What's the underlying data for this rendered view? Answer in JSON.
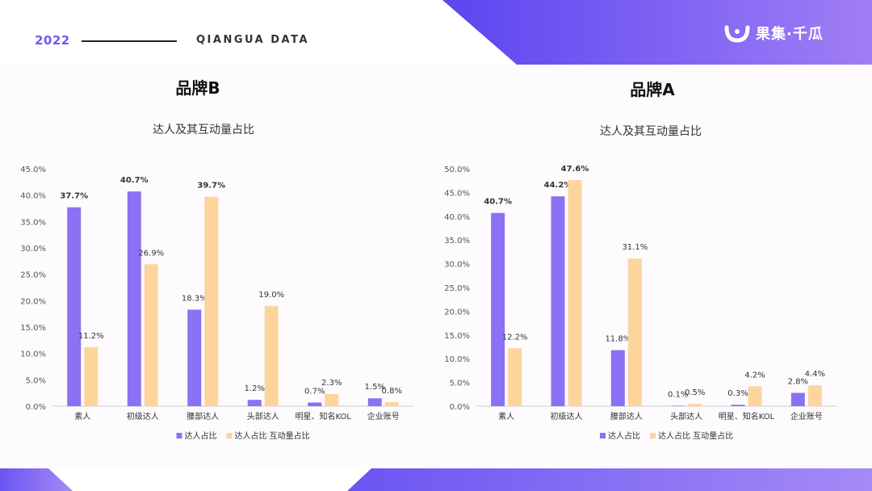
{
  "header": {
    "year": "2022",
    "brand_text": "QIANGUA DATA",
    "logo_text": "果集·千瓜"
  },
  "colors": {
    "accent": "#6b5bf0",
    "series1": "#8b71f3",
    "series2": "#fdd59c",
    "header_gradient_start": "#5b45f0",
    "header_gradient_end": "#a07ef5"
  },
  "panels": [
    {
      "title": "品牌B"
    },
    {
      "title": "品牌A"
    }
  ],
  "chart_data": [
    {
      "type": "bar",
      "title": "达人及其互动量占比",
      "categories": [
        "素人",
        "初级达人",
        "腰部达人",
        "头部达人",
        "明星、知名KOL",
        "企业账号"
      ],
      "series": [
        {
          "name": "达人占比",
          "values": [
            37.7,
            40.7,
            18.3,
            1.2,
            0.7,
            1.5
          ],
          "labels": [
            "37.7%",
            "40.7%",
            "18.3%",
            "1.2%",
            "0.7%",
            "1.5%"
          ]
        },
        {
          "name": "达人占比 互动量占比",
          "values": [
            11.2,
            26.9,
            39.7,
            19.0,
            2.3,
            0.8
          ],
          "labels": [
            "11.2%",
            "26.9%",
            "39.7%",
            "19.0%",
            "2.3%",
            "0.8%"
          ]
        }
      ],
      "bold_labels": [
        "37.7%",
        "40.7%",
        "39.7%"
      ],
      "ylim": [
        0,
        45
      ],
      "yticks": [
        "0.0%",
        "5.0%",
        "10.0%",
        "15.0%",
        "20.0%",
        "25.0%",
        "30.0%",
        "35.0%",
        "40.0%",
        "45.0%"
      ],
      "legend": "bottom-center"
    },
    {
      "type": "bar",
      "title": "达人及其互动量占比",
      "categories": [
        "素人",
        "初级达人",
        "腰部达人",
        "头部达人",
        "明星、知名KOL",
        "企业账号"
      ],
      "series": [
        {
          "name": "达人占比",
          "values": [
            40.7,
            44.2,
            11.8,
            0.1,
            0.3,
            2.8
          ],
          "labels": [
            "40.7%",
            "44.2%",
            "11.8%",
            "0.1%",
            "0.3%",
            "2.8%"
          ]
        },
        {
          "name": "达人占比 互动量占比",
          "values": [
            12.2,
            47.6,
            31.1,
            0.5,
            4.2,
            4.4
          ],
          "labels": [
            "12.2%",
            "47.6%",
            "31.1%",
            "0.5%",
            "4.2%",
            "4.4%"
          ]
        }
      ],
      "bold_labels": [
        "40.7%",
        "44.2%",
        "47.6%"
      ],
      "ylim": [
        0,
        50
      ],
      "yticks": [
        "0.0%",
        "5.0%",
        "10.0%",
        "15.0%",
        "20.0%",
        "25.0%",
        "30.0%",
        "35.0%",
        "40.0%",
        "45.0%",
        "50.0%"
      ],
      "legend": "bottom-center"
    }
  ]
}
